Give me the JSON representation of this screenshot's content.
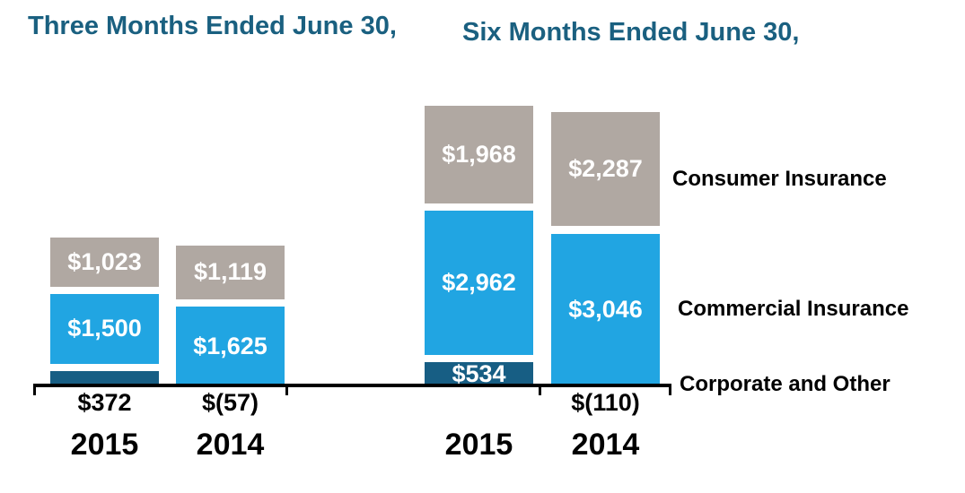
{
  "titles": {
    "left": "Three Months Ended June 30,",
    "right": "Six Months Ended June 30,",
    "color": "#1a6080"
  },
  "legend": {
    "position": "right",
    "items": [
      {
        "label": "Consumer Insurance",
        "color": "#b0a8a2"
      },
      {
        "label": "Commercial Insurance",
        "color": "#21a5e2"
      },
      {
        "label": "Corporate and Other",
        "color": "#175e84"
      }
    ]
  },
  "chart_data": {
    "type": "bar",
    "stacked": true,
    "groups": [
      {
        "title": "Three Months Ended June 30,",
        "categories": [
          "2015",
          "2014"
        ]
      },
      {
        "title": "Six Months Ended June 30,",
        "categories": [
          "2015",
          "2014"
        ]
      }
    ],
    "categories": [
      "2015",
      "2014",
      "2015",
      "2014"
    ],
    "series": [
      {
        "name": "Corporate and Other",
        "color": "#175e84",
        "values": [
          372,
          -57,
          534,
          -110
        ],
        "labels": [
          "$372",
          "$(57)",
          "$534",
          "$(110)"
        ],
        "label_placement": [
          "below-axis",
          "below-axis",
          "inside",
          "below-axis"
        ]
      },
      {
        "name": "Commercial Insurance",
        "color": "#21a5e2",
        "values": [
          1500,
          1625,
          2962,
          3046
        ],
        "labels": [
          "$1,500",
          "$1,625",
          "$2,962",
          "$3,046"
        ],
        "label_placement": [
          "inside",
          "inside",
          "inside",
          "inside"
        ]
      },
      {
        "name": "Consumer Insurance",
        "color": "#b0a8a2",
        "values": [
          1023,
          1119,
          1968,
          2287
        ],
        "labels": [
          "$1,023",
          "$1,119",
          "$1,968",
          "$2,287"
        ],
        "label_placement": [
          "inside",
          "inside",
          "inside",
          "inside"
        ]
      }
    ],
    "value_label_colors": {
      "inside": "#ffffff",
      "below_axis": "#000000"
    },
    "axis": {
      "color": "#000000",
      "gridlines": false,
      "y_axis_shown": false
    },
    "legend_position": "right"
  }
}
